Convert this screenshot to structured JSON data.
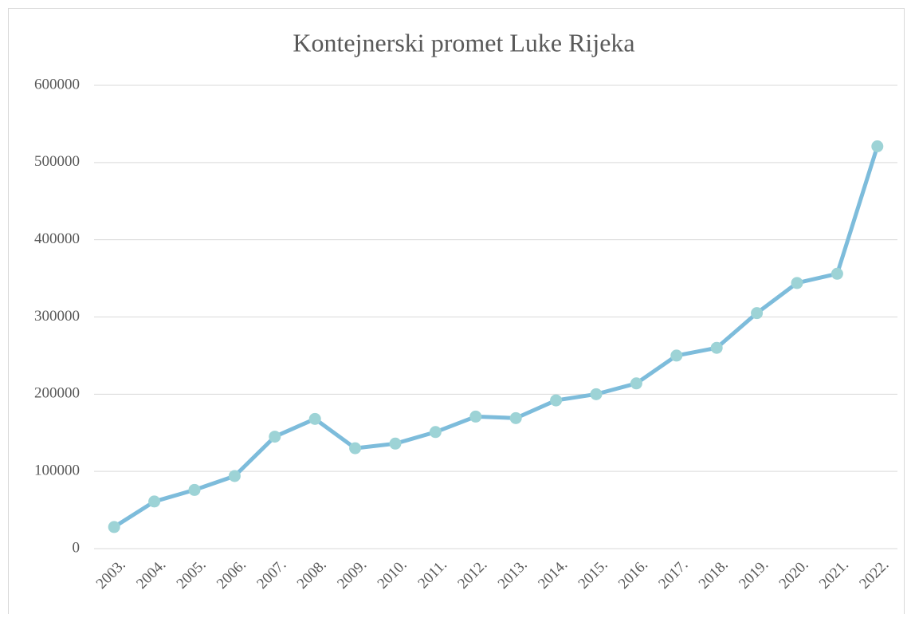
{
  "chart_data": {
    "type": "line",
    "title": "Kontejnerski promet Luke Rijeka",
    "categories": [
      "2003.",
      "2004.",
      "2005.",
      "2006.",
      "2007.",
      "2008.",
      "2009.",
      "2010.",
      "2011.",
      "2012.",
      "2013.",
      "2014.",
      "2015.",
      "2016.",
      "2017.",
      "2018.",
      "2019.",
      "2020.",
      "2021.",
      "2022."
    ],
    "series": [
      {
        "name": "Kontejnerski promet",
        "color": "#7dbcdb",
        "marker_color": "#9dd3d6",
        "values": [
          28000,
          61000,
          76000,
          94000,
          145000,
          168000,
          130000,
          136000,
          151000,
          171000,
          169000,
          192000,
          200000,
          214000,
          250000,
          260000,
          305000,
          344000,
          356000,
          521000
        ]
      }
    ],
    "ylim": [
      0,
      600000
    ],
    "yticks": [
      0,
      100000,
      200000,
      300000,
      400000,
      500000,
      600000
    ],
    "grid": true
  }
}
